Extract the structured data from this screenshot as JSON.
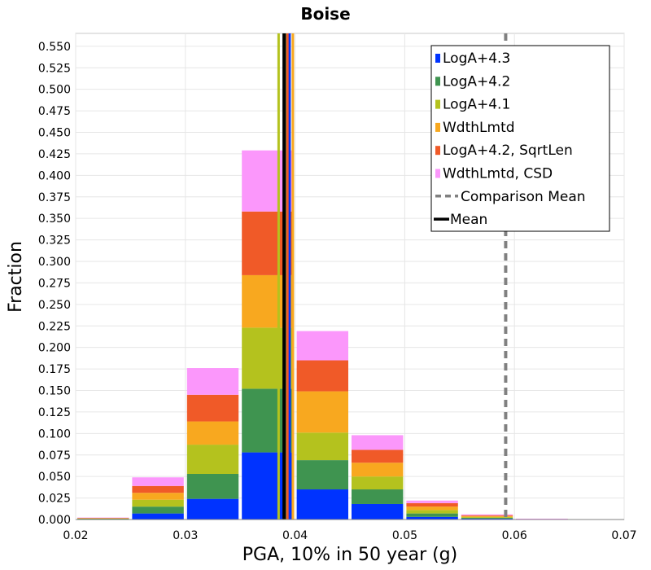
{
  "chart_data": {
    "type": "bar",
    "stacked": true,
    "title": "Boise",
    "xlabel": "PGA, 10% in 50 year (g)",
    "ylabel": "Fraction",
    "xlim": [
      0.02,
      0.07
    ],
    "ylim": [
      0.0,
      0.565
    ],
    "x_ticks": [
      "0.02",
      "0.03",
      "0.04",
      "0.05",
      "0.06",
      "0.07"
    ],
    "y_ticks": [
      "0.000",
      "0.025",
      "0.050",
      "0.075",
      "0.100",
      "0.125",
      "0.150",
      "0.175",
      "0.200",
      "0.225",
      "0.250",
      "0.275",
      "0.300",
      "0.325",
      "0.350",
      "0.375",
      "0.400",
      "0.425",
      "0.450",
      "0.475",
      "0.500",
      "0.525",
      "0.550"
    ],
    "grid": true,
    "legend_position": "top-right",
    "bins": [
      [
        0.02,
        0.025
      ],
      [
        0.025,
        0.03
      ],
      [
        0.03,
        0.035
      ],
      [
        0.035,
        0.04
      ],
      [
        0.04,
        0.045
      ],
      [
        0.045,
        0.05
      ],
      [
        0.05,
        0.055
      ],
      [
        0.055,
        0.06
      ],
      [
        0.06,
        0.065
      ]
    ],
    "series": [
      {
        "name": "LogA+4.3",
        "color": "#0033ff",
        "values": [
          0.0005,
          0.007,
          0.024,
          0.078,
          0.035,
          0.018,
          0.003,
          0.001,
          0.0002
        ]
      },
      {
        "name": "LogA+4.2",
        "color": "#3f9450",
        "values": [
          0.0005,
          0.008,
          0.029,
          0.074,
          0.034,
          0.017,
          0.004,
          0.001,
          0.0002
        ]
      },
      {
        "name": "LogA+4.1",
        "color": "#b4c21e",
        "values": [
          0.0004,
          0.008,
          0.034,
          0.071,
          0.032,
          0.015,
          0.004,
          0.001,
          0.0002
        ]
      },
      {
        "name": "WdthLmtd",
        "color": "#f8a81f",
        "values": [
          0.0003,
          0.008,
          0.027,
          0.061,
          0.048,
          0.016,
          0.004,
          0.001,
          0.0002
        ]
      },
      {
        "name": "LogA+4.2, SqrtLen",
        "color": "#f05a28",
        "values": [
          0.0003,
          0.008,
          0.031,
          0.074,
          0.036,
          0.015,
          0.004,
          0.001,
          0.0001
        ]
      },
      {
        "name": "WdthLmtd, CSD",
        "color": "#fb97fb",
        "values": [
          0.0002,
          0.01,
          0.031,
          0.071,
          0.034,
          0.017,
          0.003,
          0.001,
          0.0001
        ]
      }
    ],
    "mean_lines": [
      {
        "series": "LogA+4.3",
        "x": 0.0395
      },
      {
        "series": "LogA+4.2",
        "x": 0.0392
      },
      {
        "series": "LogA+4.1",
        "x": 0.0385
      },
      {
        "series": "WdthLmtd",
        "x": 0.0398
      },
      {
        "series": "LogA+4.2, SqrtLen",
        "x": 0.0393
      },
      {
        "series": "WdthLmtd, CSD",
        "x": 0.039
      }
    ],
    "comparison_mean": {
      "label": "Comparison Mean",
      "x": 0.0592,
      "color": "#808080"
    },
    "mean": {
      "label": "Mean",
      "x": 0.039,
      "color": "#000000"
    }
  }
}
